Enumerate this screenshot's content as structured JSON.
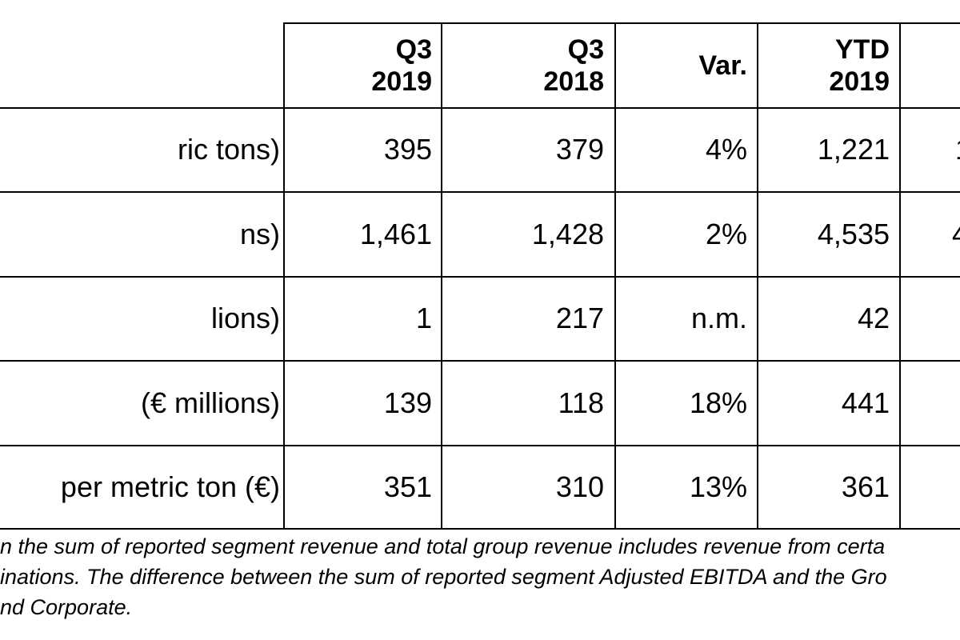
{
  "table": {
    "headers": [
      {
        "key": "q3_2019",
        "label": "Q3\n2019"
      },
      {
        "key": "q3_2018",
        "label": "Q3\n2018"
      },
      {
        "key": "var",
        "label": "Var."
      },
      {
        "key": "ytd_2019",
        "label": "YTD\n2019"
      },
      {
        "key": "ytd_2018",
        "label": ""
      }
    ],
    "rows": [
      {
        "label": "ric tons)",
        "q3_2019": "395",
        "q3_2018": "379",
        "var": "4%",
        "ytd_2019": "1,221",
        "ytd_2018": "1"
      },
      {
        "label": "ns)",
        "q3_2019": "1,461",
        "q3_2018": "1,428",
        "var": "2%",
        "ytd_2019": "4,535",
        "ytd_2018": "4"
      },
      {
        "label": "lions)",
        "q3_2019": "1",
        "q3_2018": "217",
        "var": "n.m.",
        "ytd_2019": "42",
        "ytd_2018": ""
      },
      {
        "label": "(€ millions)",
        "q3_2019": "139",
        "q3_2018": "118",
        "var": "18%",
        "ytd_2019": "441",
        "ytd_2018": ""
      },
      {
        "label": "per metric ton (€)",
        "q3_2019": "351",
        "q3_2018": "310",
        "var": "13%",
        "ytd_2019": "361",
        "ytd_2018": ""
      }
    ]
  },
  "footnote": {
    "line1": "n the sum of reported segment revenue and total group revenue includes revenue from certa",
    "line2": "inations. The difference between the sum of reported segment Adjusted EBITDA and the Gro",
    "line3": "nd Corporate."
  }
}
